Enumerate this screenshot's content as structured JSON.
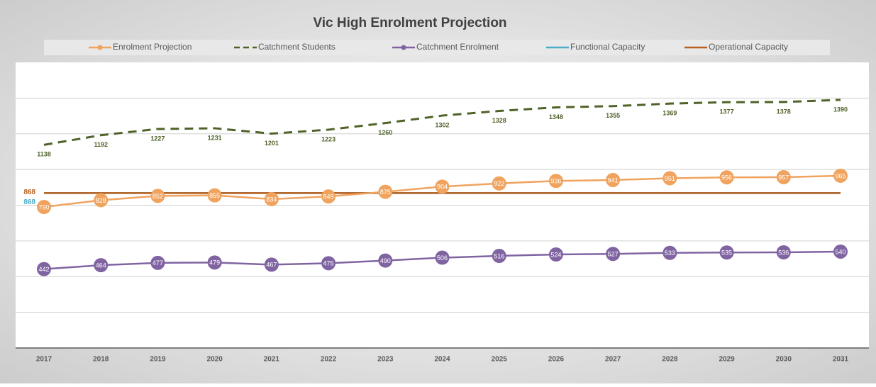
{
  "chart_data": {
    "type": "line",
    "title": "Vic High Enrolment Projection",
    "categories": [
      "2017",
      "2018",
      "2019",
      "2020",
      "2021",
      "2022",
      "2023",
      "2024",
      "2025",
      "2026",
      "2027",
      "2028",
      "2029",
      "2030",
      "2031"
    ],
    "series": [
      {
        "name": "Enrolment Projection",
        "color": "#f0a35e",
        "marker": "circle",
        "values": [
          790,
          828,
          852,
          855,
          834,
          849,
          875,
          904,
          922,
          936,
          941,
          951,
          956,
          957,
          965
        ]
      },
      {
        "name": "Catchment Students",
        "color": "#4f6228",
        "style": "dashed",
        "values": [
          1138,
          1192,
          1227,
          1231,
          1201,
          1223,
          1260,
          1302,
          1328,
          1348,
          1355,
          1369,
          1377,
          1378,
          1390
        ]
      },
      {
        "name": "Catchment Enrolment",
        "color": "#8064a2",
        "marker": "circle",
        "values": [
          442,
          464,
          477,
          479,
          467,
          475,
          490,
          506,
          516,
          524,
          527,
          533,
          535,
          536,
          540
        ]
      },
      {
        "name": "Functional Capacity",
        "color": "#4bacc6",
        "values": [
          868,
          868,
          868,
          868,
          868,
          868,
          868,
          868,
          868,
          868,
          868,
          868,
          868,
          868,
          868
        ]
      },
      {
        "name": "Operational Capacity",
        "color": "#b8601e",
        "values": [
          868,
          868,
          868,
          868,
          868,
          868,
          868,
          868,
          868,
          868,
          868,
          868,
          868,
          868,
          868
        ]
      }
    ],
    "ylim": [
      0,
      1600
    ],
    "yticks": [
      0,
      200,
      400,
      600,
      800,
      1000,
      1200,
      1400
    ],
    "grid": true
  }
}
